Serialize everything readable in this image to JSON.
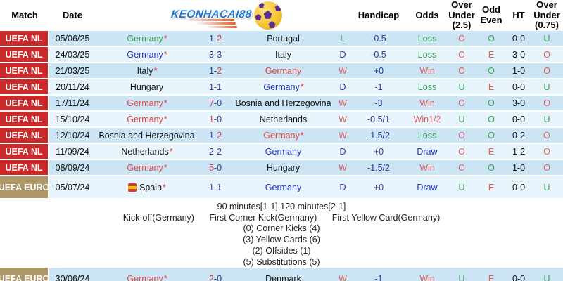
{
  "logo": {
    "text": "KEONHACAI88"
  },
  "header": {
    "match": "Match",
    "date": "Date",
    "handicap": "Handicap",
    "odds": "Odds",
    "over_under_25": "Over Under (2.5)",
    "odd_even": "Odd Even",
    "ht": "HT",
    "over_under_075": "Over Under (0.75)"
  },
  "colors": {
    "row_dark": "#cbe5f5",
    "row_light": "#e8f4fb",
    "nl_badge_red": "#cb2a2a",
    "euro_badge_tan": "#ad9768",
    "win_red": "#e06060",
    "loss_green": "#3ba355",
    "draw_blue": "#2433c0",
    "score_navy": "#2b3a98",
    "winner_score_red": "#cf3a50",
    "logo_blue": "#1c76cc"
  },
  "rows": [
    {
      "comp": "UEFA NL",
      "comp_style": "nl",
      "date": "05/06/25",
      "home": "Germany",
      "home_mark": "*",
      "home_color": "teamgreen",
      "home_icon": false,
      "score": {
        "h": "1",
        "sep": "-",
        "a": "2",
        "hc": "navy",
        "ac": "crimson"
      },
      "away": "Portugal",
      "away_mark": "",
      "away_color": "black",
      "result": "L",
      "result_color": "green",
      "handicap": "-0.5",
      "odds": "Loss",
      "odds_color": "green",
      "ou25": "O",
      "ou25_color": "red",
      "oe": "O",
      "oe_color": "green",
      "ht": "0-0",
      "ou075": "U",
      "ou075_color": "green"
    },
    {
      "comp": "UEFA NL",
      "comp_style": "nl",
      "date": "24/03/25",
      "home": "Germany",
      "home_mark": "*",
      "home_color": "blue",
      "home_icon": false,
      "score": {
        "h": "3",
        "sep": "-",
        "a": "3",
        "hc": "navy",
        "ac": "navy"
      },
      "away": "Italy",
      "away_mark": "",
      "away_color": "black",
      "result": "D",
      "result_color": "navy",
      "handicap": "-0.5",
      "odds": "Loss",
      "odds_color": "green",
      "ou25": "O",
      "ou25_color": "red",
      "oe": "E",
      "oe_color": "red",
      "ht": "3-0",
      "ou075": "O",
      "ou075_color": "red"
    },
    {
      "comp": "UEFA NL",
      "comp_style": "nl",
      "date": "21/03/25",
      "home": "Italy",
      "home_mark": "*",
      "home_color": "black",
      "home_icon": false,
      "score": {
        "h": "1",
        "sep": "-",
        "a": "2",
        "hc": "navy",
        "ac": "crimson"
      },
      "away": "Germany",
      "away_mark": "",
      "away_color": "teamred",
      "result": "W",
      "result_color": "red",
      "handicap": "+0",
      "odds": "Win",
      "odds_color": "red",
      "ou25": "O",
      "ou25_color": "red",
      "oe": "O",
      "oe_color": "green",
      "ht": "1-0",
      "ou075": "O",
      "ou075_color": "red"
    },
    {
      "comp": "UEFA NL",
      "comp_style": "nl",
      "date": "20/11/24",
      "home": "Hungary",
      "home_mark": "",
      "home_color": "black",
      "home_icon": false,
      "score": {
        "h": "1",
        "sep": "-",
        "a": "1",
        "hc": "navy",
        "ac": "navy"
      },
      "away": "Germany",
      "away_mark": "*",
      "away_color": "blue",
      "result": "D",
      "result_color": "navy",
      "handicap": "-1",
      "odds": "Loss",
      "odds_color": "green",
      "ou25": "U",
      "ou25_color": "green",
      "oe": "E",
      "oe_color": "red",
      "ht": "0-0",
      "ou075": "U",
      "ou075_color": "green"
    },
    {
      "comp": "UEFA NL",
      "comp_style": "nl",
      "date": "17/11/24",
      "home": "Germany",
      "home_mark": "*",
      "home_color": "teamred",
      "home_icon": false,
      "score": {
        "h": "7",
        "sep": "-",
        "a": "0",
        "hc": "crimson",
        "ac": "navy"
      },
      "away": "Bosnia and Herzegovina",
      "away_mark": "",
      "away_color": "black",
      "result": "W",
      "result_color": "red",
      "handicap": "-3",
      "odds": "Win",
      "odds_color": "red",
      "ou25": "O",
      "ou25_color": "red",
      "oe": "O",
      "oe_color": "green",
      "ht": "3-0",
      "ou075": "O",
      "ou075_color": "red"
    },
    {
      "comp": "UEFA NL",
      "comp_style": "nl",
      "date": "15/10/24",
      "home": "Germany",
      "home_mark": "*",
      "home_color": "teamred",
      "home_icon": false,
      "score": {
        "h": "1",
        "sep": "-",
        "a": "0",
        "hc": "crimson",
        "ac": "navy"
      },
      "away": "Netherlands",
      "away_mark": "",
      "away_color": "black",
      "result": "W",
      "result_color": "red",
      "handicap": "-0.5/1",
      "odds": "Win1/2",
      "odds_color": "red",
      "ou25": "U",
      "ou25_color": "green",
      "oe": "O",
      "oe_color": "green",
      "ht": "0-0",
      "ou075": "U",
      "ou075_color": "green"
    },
    {
      "comp": "UEFA NL",
      "comp_style": "nl",
      "date": "12/10/24",
      "home": "Bosnia and Herzegovina",
      "home_mark": "",
      "home_color": "black",
      "home_icon": false,
      "score": {
        "h": "1",
        "sep": "-",
        "a": "2",
        "hc": "navy",
        "ac": "crimson"
      },
      "away": "Germany",
      "away_mark": "*",
      "away_color": "teamred",
      "result": "W",
      "result_color": "red",
      "handicap": "-1.5/2",
      "odds": "Loss",
      "odds_color": "green",
      "ou25": "O",
      "ou25_color": "red",
      "oe": "O",
      "oe_color": "green",
      "ht": "0-2",
      "ou075": "O",
      "ou075_color": "red"
    },
    {
      "comp": "UEFA NL",
      "comp_style": "nl",
      "date": "11/09/24",
      "home": "Netherlands",
      "home_mark": "*",
      "home_color": "black",
      "home_icon": false,
      "score": {
        "h": "2",
        "sep": "-",
        "a": "2",
        "hc": "navy",
        "ac": "navy"
      },
      "away": "Germany",
      "away_mark": "",
      "away_color": "blue",
      "result": "D",
      "result_color": "navy",
      "handicap": "+0",
      "odds": "Draw",
      "odds_color": "blue",
      "ou25": "O",
      "ou25_color": "red",
      "oe": "E",
      "oe_color": "red",
      "ht": "1-2",
      "ou075": "O",
      "ou075_color": "red"
    },
    {
      "comp": "UEFA NL",
      "comp_style": "nl",
      "date": "08/09/24",
      "home": "Germany",
      "home_mark": "*",
      "home_color": "teamred",
      "home_icon": false,
      "score": {
        "h": "5",
        "sep": "-",
        "a": "0",
        "hc": "crimson",
        "ac": "navy"
      },
      "away": "Hungary",
      "away_mark": "",
      "away_color": "black",
      "result": "W",
      "result_color": "red",
      "handicap": "-1.5/2",
      "odds": "Win",
      "odds_color": "red",
      "ou25": "O",
      "ou25_color": "red",
      "oe": "O",
      "oe_color": "green",
      "ht": "1-0",
      "ou075": "O",
      "ou075_color": "red"
    },
    {
      "comp": "UEFA EURO",
      "comp_style": "euro",
      "date": "05/07/24",
      "home": "Spain",
      "home_mark": "*",
      "home_color": "black",
      "home_icon": true,
      "score": {
        "h": "1",
        "sep": "-",
        "a": "1",
        "hc": "navy",
        "ac": "navy"
      },
      "away": "Germany",
      "away_mark": "",
      "away_color": "blue",
      "result": "D",
      "result_color": "navy",
      "handicap": "+0",
      "odds": "Draw",
      "odds_color": "blue",
      "ou25": "U",
      "ou25_color": "green",
      "oe": "E",
      "oe_color": "red",
      "ht": "0-0",
      "ou075": "U",
      "ou075_color": "green"
    },
    {
      "comp": "UEFA EURO",
      "comp_style": "euro",
      "date": "30/06/24",
      "home": "Germany",
      "home_mark": "*",
      "home_color": "teamred",
      "home_icon": false,
      "score": {
        "h": "2",
        "sep": "-",
        "a": "0",
        "hc": "crimson",
        "ac": "navy"
      },
      "away": "Denmark",
      "away_mark": "",
      "away_color": "black",
      "result": "W",
      "result_color": "red",
      "handicap": "-1",
      "odds": "Win",
      "odds_color": "red",
      "ou25": "U",
      "ou25_color": "green",
      "oe": "E",
      "oe_color": "red",
      "ht": "0-0",
      "ou075": "U",
      "ou075_color": "green"
    }
  ],
  "summary": {
    "minutes_line": "90 minutes[1-1],120 minutes[2-1]",
    "firsts": [
      "Kick-off(Germany)",
      "First Corner Kick(Germany)",
      "First Yellow Card(Germany)"
    ],
    "stats": [
      "(0) Corner Kicks (4)",
      "(3) Yellow Cards (6)",
      "(2) Offsides (1)",
      "(5) Substitutions (5)"
    ]
  }
}
